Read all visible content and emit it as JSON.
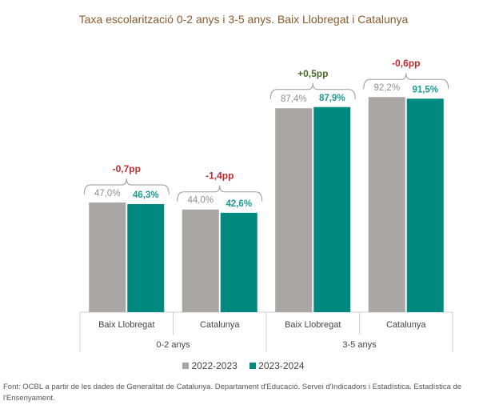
{
  "chart_data": {
    "type": "bar",
    "title": "Taxa escolarització 0-2 anys i 3-5 anys. Baix Llobregat i Catalunya",
    "categories": [
      "Baix Llobregat",
      "Catalunya",
      "Baix Llobregat",
      "Catalunya"
    ],
    "groups": [
      {
        "label": "0-2 anys",
        "span": [
          0,
          1
        ]
      },
      {
        "label": "3-5 anys",
        "span": [
          2,
          3
        ]
      }
    ],
    "series": [
      {
        "name": "2022-2023",
        "color": "#a9a6a6",
        "values": [
          47.0,
          44.0,
          87.4,
          92.2
        ],
        "labels": [
          "47,0%",
          "44,0%",
          "87,4%",
          "92,2%"
        ]
      },
      {
        "name": "2023-2024",
        "color": "#00897f",
        "values": [
          46.3,
          42.6,
          87.9,
          91.5
        ],
        "labels": [
          "46,3%",
          "42,6%",
          "87,9%",
          "91,5%"
        ]
      }
    ],
    "annotations": [
      {
        "text": "-0,7pp",
        "color": "#c0282d"
      },
      {
        "text": "-1,4pp",
        "color": "#c0282d"
      },
      {
        "text": "+0,5pp",
        "color": "#4a6a2a"
      },
      {
        "text": "-0,6pp",
        "color": "#c0282d"
      }
    ],
    "ylim": [
      0,
      100
    ],
    "grid": false,
    "legend": "bottom"
  },
  "footer": {
    "source": "Font: OCBL a partir de les dades de Generalitat de Catalunya. Departament d'Educació. Servei d'Indicadors i Estadística. Estadística de l'Ensenyament."
  }
}
